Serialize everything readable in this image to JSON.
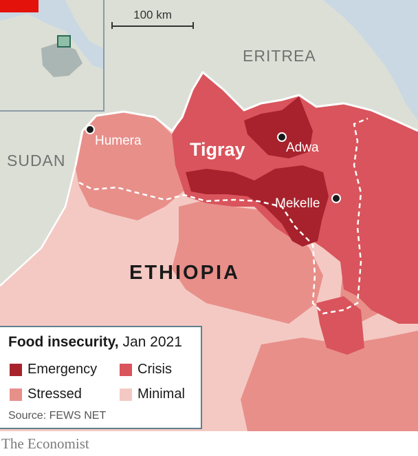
{
  "colors": {
    "emergency": "#a7222c",
    "crisis": "#d9545c",
    "stressed": "#e88f8a",
    "minimal": "#f4c9c3",
    "land_neighbor": "#dcdfd6",
    "water": "#c9d8e2",
    "boundary_dashed": "#ffffff"
  },
  "scale": {
    "label": "100 km"
  },
  "countries": {
    "eritrea": "ERITREA",
    "sudan": "SUDAN",
    "ethiopia": "ETHIOPIA"
  },
  "region": {
    "name": "Tigray"
  },
  "cities": [
    {
      "name": "Humera"
    },
    {
      "name": "Adwa"
    },
    {
      "name": "Mekelle"
    }
  ],
  "legend": {
    "title_bold": "Food insecurity,",
    "title_rest": " Jan 2021",
    "items": [
      {
        "label": "Emergency",
        "level": "emergency"
      },
      {
        "label": "Crisis",
        "level": "crisis"
      },
      {
        "label": "Stressed",
        "level": "stressed"
      },
      {
        "label": "Minimal",
        "level": "minimal"
      }
    ],
    "source": "Source: FEWS NET"
  },
  "credit": "The Economist"
}
